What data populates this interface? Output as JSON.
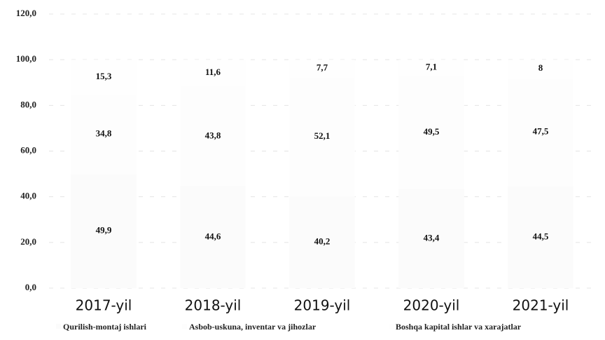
{
  "chart_data": {
    "type": "stacked_bar",
    "categories": [
      "2017-yil",
      "2018-yil",
      "2019-yil",
      "2020-yil",
      "2021-yil"
    ],
    "series": [
      {
        "name": "Qurilish-montaj ishlari",
        "color": "#fbfbfb",
        "values": [
          49.9,
          44.6,
          40.2,
          43.4,
          44.5
        ],
        "value_labels": [
          "49,9",
          "44,6",
          "40,2",
          "43,4",
          "44,5"
        ]
      },
      {
        "name": "Asbob-uskuna, inventar va jihozlar",
        "color": "#fdfdfd",
        "values": [
          34.8,
          43.8,
          52.1,
          49.5,
          47.5
        ],
        "value_labels": [
          "34,8",
          "43,8",
          "52,1",
          "49,5",
          "47,5"
        ]
      },
      {
        "name": "Boshqa kapital ishlar va xarajatlar",
        "color": "#fefefe",
        "values": [
          15.3,
          11.6,
          7.7,
          7.1,
          8
        ],
        "value_labels": [
          "15,3",
          "11,6",
          "7,7",
          "7,1",
          "8"
        ]
      }
    ],
    "ylim": [
      0,
      120
    ],
    "yticks": [
      {
        "value": 0,
        "label": "0,0"
      },
      {
        "value": 20,
        "label": "20,0"
      },
      {
        "value": 40,
        "label": "40,0"
      },
      {
        "value": 60,
        "label": "60,0"
      },
      {
        "value": 80,
        "label": "80,0"
      },
      {
        "value": 100,
        "label": "100,0"
      },
      {
        "value": 120,
        "label": "120,0"
      }
    ],
    "grid": true,
    "legend": "bottom"
  }
}
